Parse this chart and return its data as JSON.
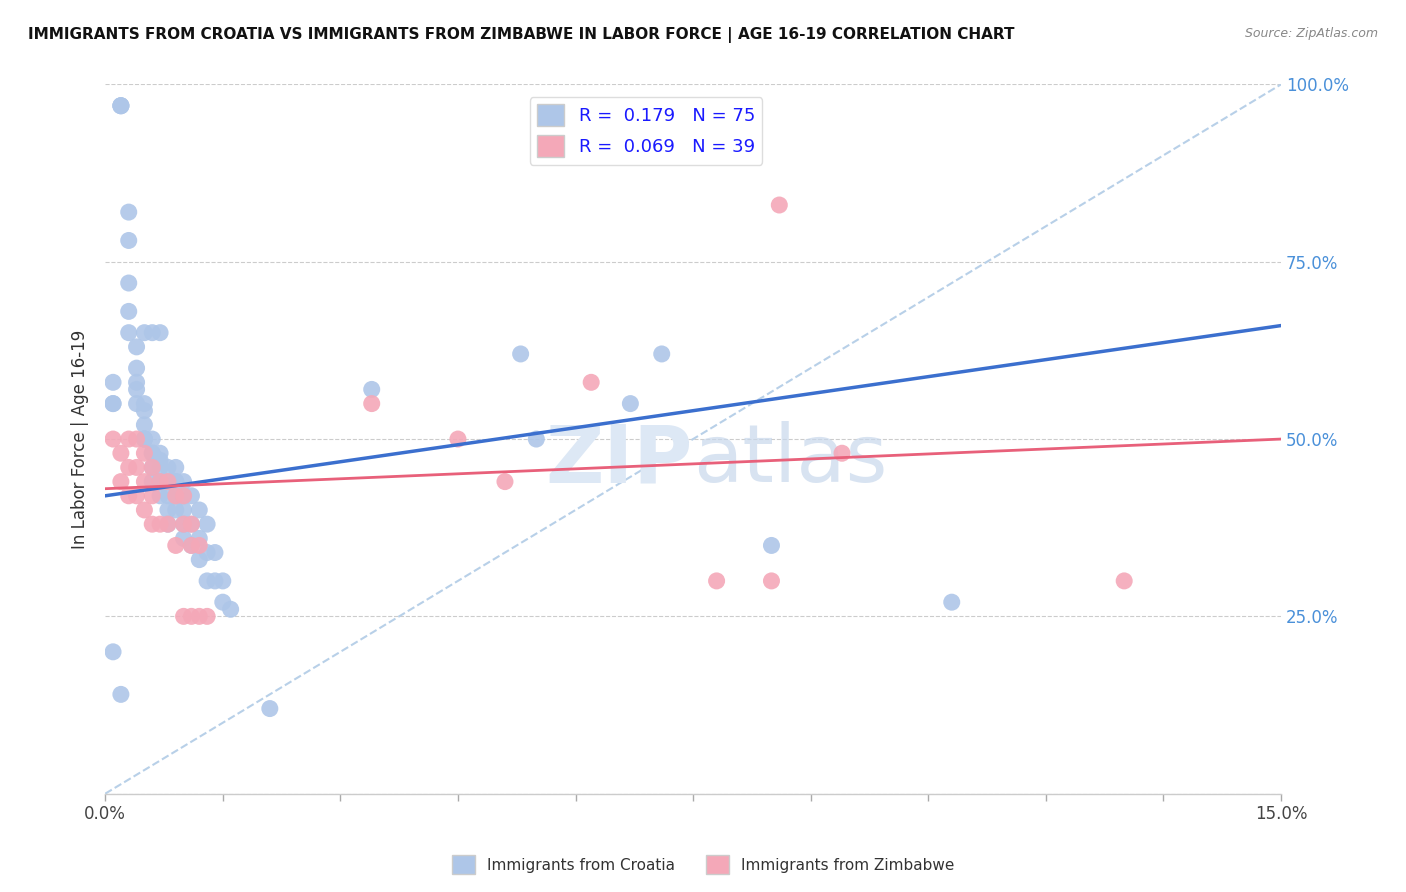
{
  "title": "IMMIGRANTS FROM CROATIA VS IMMIGRANTS FROM ZIMBABWE IN LABOR FORCE | AGE 16-19 CORRELATION CHART",
  "source": "Source: ZipAtlas.com",
  "ylabel": "In Labor Force | Age 16-19",
  "xlim": [
    0.0,
    0.15
  ],
  "ylim": [
    0.0,
    1.0
  ],
  "xticks": [
    0.0,
    0.015,
    0.03,
    0.045,
    0.06,
    0.075,
    0.09,
    0.105,
    0.12,
    0.135,
    0.15
  ],
  "xtick_labels_show": [
    "0.0%",
    "",
    "",
    "",
    "",
    "",
    "",
    "",
    "",
    "",
    "15.0%"
  ],
  "yticks": [
    0.0,
    0.25,
    0.5,
    0.75,
    1.0
  ],
  "ytick_labels_right": [
    "",
    "25.0%",
    "50.0%",
    "75.0%",
    "100.0%"
  ],
  "croatia_R": 0.179,
  "croatia_N": 75,
  "zimbabwe_R": 0.069,
  "zimbabwe_N": 39,
  "croatia_color": "#aec6e8",
  "zimbabwe_color": "#f4a8b8",
  "croatia_line_color": "#3b6fce",
  "zimbabwe_line_color": "#e8607a",
  "dashed_line_color": "#b8d0e8",
  "watermark_color": "#dde8f5",
  "background_color": "#ffffff",
  "croatia_x": [
    0.001,
    0.002,
    0.002,
    0.002,
    0.003,
    0.003,
    0.003,
    0.003,
    0.003,
    0.004,
    0.004,
    0.004,
    0.004,
    0.004,
    0.005,
    0.005,
    0.005,
    0.005,
    0.005,
    0.005,
    0.006,
    0.006,
    0.006,
    0.006,
    0.006,
    0.007,
    0.007,
    0.007,
    0.007,
    0.007,
    0.007,
    0.008,
    0.008,
    0.008,
    0.008,
    0.008,
    0.009,
    0.009,
    0.009,
    0.009,
    0.009,
    0.01,
    0.01,
    0.01,
    0.01,
    0.01,
    0.011,
    0.011,
    0.011,
    0.012,
    0.012,
    0.012,
    0.013,
    0.013,
    0.013,
    0.014,
    0.014,
    0.015,
    0.015,
    0.016,
    0.002,
    0.001,
    0.001,
    0.001,
    0.034,
    0.053,
    0.055,
    0.067,
    0.071,
    0.085,
    0.108,
    0.021,
    0.006,
    0.007,
    0.005
  ],
  "croatia_y": [
    0.2,
    0.97,
    0.97,
    0.97,
    0.82,
    0.78,
    0.72,
    0.68,
    0.65,
    0.63,
    0.6,
    0.58,
    0.57,
    0.55,
    0.55,
    0.54,
    0.52,
    0.5,
    0.5,
    0.5,
    0.5,
    0.48,
    0.48,
    0.46,
    0.44,
    0.48,
    0.47,
    0.46,
    0.44,
    0.44,
    0.42,
    0.46,
    0.44,
    0.42,
    0.4,
    0.38,
    0.46,
    0.44,
    0.44,
    0.42,
    0.4,
    0.44,
    0.42,
    0.4,
    0.38,
    0.36,
    0.42,
    0.38,
    0.35,
    0.4,
    0.36,
    0.33,
    0.38,
    0.34,
    0.3,
    0.34,
    0.3,
    0.3,
    0.27,
    0.26,
    0.14,
    0.58,
    0.55,
    0.55,
    0.57,
    0.62,
    0.5,
    0.55,
    0.62,
    0.35,
    0.27,
    0.12,
    0.65,
    0.65,
    0.65
  ],
  "zimbabwe_x": [
    0.001,
    0.002,
    0.002,
    0.003,
    0.003,
    0.003,
    0.004,
    0.004,
    0.004,
    0.005,
    0.005,
    0.005,
    0.006,
    0.006,
    0.006,
    0.007,
    0.007,
    0.008,
    0.008,
    0.009,
    0.009,
    0.01,
    0.01,
    0.01,
    0.011,
    0.011,
    0.011,
    0.012,
    0.012,
    0.013,
    0.034,
    0.045,
    0.051,
    0.062,
    0.078,
    0.085,
    0.086,
    0.094,
    0.13
  ],
  "zimbabwe_y": [
    0.5,
    0.48,
    0.44,
    0.5,
    0.46,
    0.42,
    0.5,
    0.46,
    0.42,
    0.48,
    0.44,
    0.4,
    0.46,
    0.42,
    0.38,
    0.44,
    0.38,
    0.44,
    0.38,
    0.42,
    0.35,
    0.42,
    0.38,
    0.25,
    0.38,
    0.35,
    0.25,
    0.35,
    0.25,
    0.25,
    0.55,
    0.5,
    0.44,
    0.58,
    0.3,
    0.3,
    0.83,
    0.48,
    0.3
  ],
  "croatia_line_x": [
    0.0,
    0.15
  ],
  "croatia_line_y": [
    0.42,
    0.66
  ],
  "zimbabwe_line_x": [
    0.0,
    0.15
  ],
  "zimbabwe_line_y": [
    0.43,
    0.5
  ],
  "dashed_line_x": [
    0.0,
    0.15
  ],
  "dashed_line_y": [
    0.0,
    1.0
  ]
}
